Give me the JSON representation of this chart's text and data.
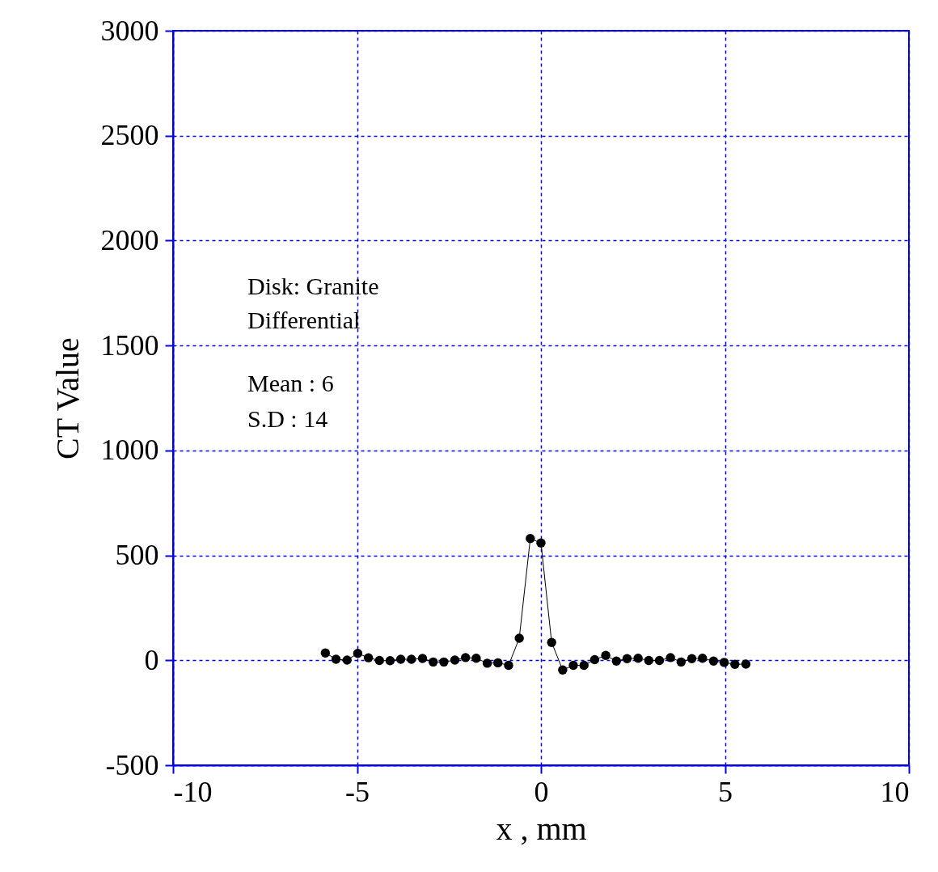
{
  "chart_data": {
    "type": "line",
    "xlabel": "x ,  mm",
    "ylabel": "CT Value",
    "x": [
      -5.86,
      -5.57,
      -5.27,
      -4.98,
      -4.69,
      -4.39,
      -4.1,
      -3.81,
      -3.52,
      -3.22,
      -2.93,
      -2.64,
      -2.34,
      -2.05,
      -1.76,
      -1.46,
      -1.17,
      -0.88,
      -0.59,
      -0.29,
      0,
      0.29,
      0.59,
      0.88,
      1.17,
      1.46,
      1.76,
      2.05,
      2.34,
      2.64,
      2.93,
      3.22,
      3.52,
      3.81,
      4.1,
      4.39,
      4.69,
      4.98,
      5.27,
      5.57
    ],
    "series": [
      {
        "color": "#000000",
        "values": [
          35,
          5,
          1,
          33,
          12,
          -1,
          -2,
          5,
          5,
          9,
          -8,
          -8,
          1,
          13,
          10,
          -14,
          -12,
          -24,
          105,
          580,
          559,
          85,
          -46,
          -24,
          -24,
          3,
          23,
          -4,
          8,
          10,
          -1,
          -1,
          13,
          -8,
          8,
          10,
          -4,
          -10,
          -19,
          -18
        ]
      }
    ],
    "xlim": [
      -10,
      10
    ],
    "xticks": [
      -10,
      -5,
      0,
      5,
      10
    ],
    "ylim": [
      -500,
      3000
    ],
    "yticks": [
      -500,
      0,
      500,
      1000,
      1500,
      2000,
      2500,
      3000
    ],
    "grid": true,
    "marker": "circle",
    "line_style": "solid",
    "annotations": [
      "Disk: Granite",
      "Differential",
      "Mean : 6",
      "S.D   : 14"
    ]
  }
}
